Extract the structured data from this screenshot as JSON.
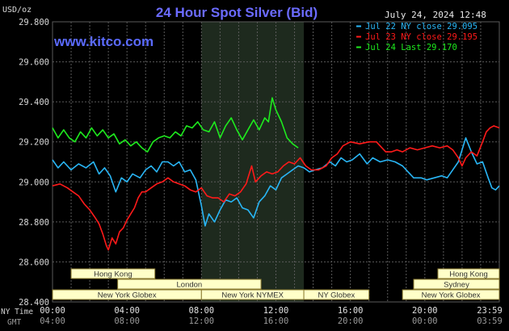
{
  "colors": {
    "background": "#000000",
    "plot_background": "#000000",
    "grid": "#5a5a5a",
    "nymex_band": "#1e2a1e",
    "title": "#6b6bff",
    "kitco": "#5b6bff",
    "axis_text": "#d8d8d8",
    "session_fill": "#ffffc8",
    "session_border": "#8a7a30",
    "session_text": "#333333"
  },
  "chart_data": {
    "type": "line",
    "title": "24 Hour Spot Silver (Bid)",
    "ylabel": "USD/oz",
    "timestamp": "July 24, 2024 12:48",
    "source": "www.kitco.com",
    "ylim": [
      28.4,
      29.8
    ],
    "yticks": [
      "29.800",
      "29.600",
      "29.400",
      "29.200",
      "29.000",
      "28.800",
      "28.600",
      "28.400"
    ],
    "x_hours": [
      0,
      24
    ],
    "xticks_ny": [
      "00:00",
      "04:00",
      "08:00",
      "12:00",
      "16:00",
      "20:00",
      "23:59"
    ],
    "xticks_gmt": [
      "04:00",
      "08:00",
      "12:00",
      "16:00",
      "20:00",
      "00:00",
      "03:59"
    ],
    "xlabel_ny": "NY Time",
    "xlabel_gmt": "GMT",
    "grid": true,
    "highlight_band_hours": [
      8.0,
      13.5
    ],
    "legend_position": "top-right",
    "series": [
      {
        "name": "Jul 22 NY close 29.095",
        "color": "#29b6f6",
        "points": [
          [
            0,
            29.11
          ],
          [
            0.3,
            29.07
          ],
          [
            0.6,
            29.1
          ],
          [
            1.0,
            29.06
          ],
          [
            1.4,
            29.09
          ],
          [
            1.8,
            29.07
          ],
          [
            2.2,
            29.1
          ],
          [
            2.5,
            29.04
          ],
          [
            2.8,
            29.07
          ],
          [
            3.1,
            29.03
          ],
          [
            3.4,
            28.95
          ],
          [
            3.7,
            29.02
          ],
          [
            4.0,
            29.0
          ],
          [
            4.3,
            29.04
          ],
          [
            4.7,
            29.02
          ],
          [
            5.0,
            29.06
          ],
          [
            5.3,
            29.08
          ],
          [
            5.6,
            29.05
          ],
          [
            5.9,
            29.1
          ],
          [
            6.2,
            29.1
          ],
          [
            6.5,
            29.08
          ],
          [
            6.8,
            29.1
          ],
          [
            7.1,
            29.05
          ],
          [
            7.4,
            29.06
          ],
          [
            7.7,
            29.01
          ],
          [
            8.0,
            28.88
          ],
          [
            8.2,
            28.78
          ],
          [
            8.4,
            28.84
          ],
          [
            8.7,
            28.8
          ],
          [
            9.0,
            28.86
          ],
          [
            9.3,
            28.91
          ],
          [
            9.6,
            28.9
          ],
          [
            9.9,
            28.92
          ],
          [
            10.2,
            28.87
          ],
          [
            10.5,
            28.86
          ],
          [
            10.8,
            28.82
          ],
          [
            11.1,
            28.9
          ],
          [
            11.4,
            28.93
          ],
          [
            11.7,
            28.98
          ],
          [
            12.0,
            28.96
          ],
          [
            12.3,
            29.02
          ],
          [
            12.6,
            29.04
          ],
          [
            12.9,
            29.06
          ],
          [
            13.2,
            29.08
          ],
          [
            13.5,
            29.07
          ],
          [
            13.8,
            29.05
          ],
          [
            14.1,
            29.06
          ],
          [
            14.5,
            29.07
          ],
          [
            14.9,
            29.1
          ],
          [
            15.2,
            29.08
          ],
          [
            15.5,
            29.12
          ],
          [
            15.8,
            29.1
          ],
          [
            16.1,
            29.11
          ],
          [
            16.5,
            29.14
          ],
          [
            16.9,
            29.09
          ],
          [
            17.2,
            29.12
          ],
          [
            17.6,
            29.1
          ],
          [
            18.0,
            29.11
          ],
          [
            18.4,
            29.1
          ],
          [
            18.8,
            29.08
          ],
          [
            19.1,
            29.05
          ],
          [
            19.4,
            29.02
          ],
          [
            19.8,
            29.02
          ],
          [
            20.1,
            29.01
          ],
          [
            20.5,
            29.02
          ],
          [
            20.9,
            29.03
          ],
          [
            21.2,
            29.02
          ],
          [
            21.5,
            29.06
          ],
          [
            21.8,
            29.1
          ],
          [
            22.0,
            29.16
          ],
          [
            22.2,
            29.22
          ],
          [
            22.5,
            29.15
          ],
          [
            22.8,
            29.09
          ],
          [
            23.1,
            29.1
          ],
          [
            23.4,
            29.02
          ],
          [
            23.6,
            28.97
          ],
          [
            23.8,
            28.96
          ],
          [
            24.0,
            28.98
          ]
        ]
      },
      {
        "name": "Jul 23 NY close 29.195",
        "color": "#ff1a1a",
        "points": [
          [
            0,
            28.98
          ],
          [
            0.4,
            28.99
          ],
          [
            0.8,
            28.97
          ],
          [
            1.1,
            28.95
          ],
          [
            1.4,
            28.93
          ],
          [
            1.7,
            28.89
          ],
          [
            2.0,
            28.86
          ],
          [
            2.3,
            28.82
          ],
          [
            2.5,
            28.79
          ],
          [
            2.7,
            28.74
          ],
          [
            2.9,
            28.68
          ],
          [
            3.0,
            28.66
          ],
          [
            3.2,
            28.72
          ],
          [
            3.4,
            28.69
          ],
          [
            3.6,
            28.75
          ],
          [
            3.8,
            28.77
          ],
          [
            4.0,
            28.81
          ],
          [
            4.2,
            28.84
          ],
          [
            4.4,
            28.87
          ],
          [
            4.6,
            28.92
          ],
          [
            4.8,
            28.95
          ],
          [
            5.0,
            28.95
          ],
          [
            5.3,
            28.97
          ],
          [
            5.6,
            28.99
          ],
          [
            5.9,
            29.0
          ],
          [
            6.2,
            29.02
          ],
          [
            6.5,
            29.0
          ],
          [
            6.8,
            28.99
          ],
          [
            7.1,
            28.98
          ],
          [
            7.4,
            28.96
          ],
          [
            7.7,
            28.95
          ],
          [
            8.0,
            28.97
          ],
          [
            8.3,
            28.93
          ],
          [
            8.6,
            28.92
          ],
          [
            8.9,
            28.92
          ],
          [
            9.2,
            28.9
          ],
          [
            9.5,
            28.94
          ],
          [
            9.8,
            28.93
          ],
          [
            10.1,
            28.95
          ],
          [
            10.4,
            28.99
          ],
          [
            10.7,
            29.08
          ],
          [
            10.9,
            29.0
          ],
          [
            11.2,
            29.03
          ],
          [
            11.5,
            29.05
          ],
          [
            11.8,
            29.04
          ],
          [
            12.1,
            29.05
          ],
          [
            12.4,
            29.08
          ],
          [
            12.7,
            29.1
          ],
          [
            13.0,
            29.09
          ],
          [
            13.3,
            29.12
          ],
          [
            13.6,
            29.08
          ],
          [
            13.9,
            29.06
          ],
          [
            14.3,
            29.06
          ],
          [
            14.7,
            29.08
          ],
          [
            15.0,
            29.12
          ],
          [
            15.3,
            29.14
          ],
          [
            15.6,
            29.18
          ],
          [
            16.0,
            29.2
          ],
          [
            16.5,
            29.19
          ],
          [
            17.0,
            29.2
          ],
          [
            17.4,
            29.2
          ],
          [
            17.6,
            29.18
          ],
          [
            17.9,
            29.15
          ],
          [
            18.2,
            29.15
          ],
          [
            18.5,
            29.16
          ],
          [
            18.8,
            29.15
          ],
          [
            19.2,
            29.17
          ],
          [
            19.6,
            29.16
          ],
          [
            20.0,
            29.17
          ],
          [
            20.4,
            29.18
          ],
          [
            20.8,
            29.17
          ],
          [
            21.2,
            29.18
          ],
          [
            21.5,
            29.16
          ],
          [
            21.8,
            29.12
          ],
          [
            22.0,
            29.08
          ],
          [
            22.2,
            29.12
          ],
          [
            22.5,
            29.15
          ],
          [
            22.8,
            29.13
          ],
          [
            23.1,
            29.2
          ],
          [
            23.3,
            29.25
          ],
          [
            23.5,
            29.27
          ],
          [
            23.7,
            29.28
          ],
          [
            24.0,
            29.27
          ]
        ]
      },
      {
        "name": "Jul 24 Last 29.170",
        "color": "#1eea1e",
        "points": [
          [
            0,
            29.27
          ],
          [
            0.3,
            29.22
          ],
          [
            0.6,
            29.26
          ],
          [
            0.9,
            29.22
          ],
          [
            1.2,
            29.2
          ],
          [
            1.5,
            29.25
          ],
          [
            1.8,
            29.22
          ],
          [
            2.1,
            29.27
          ],
          [
            2.4,
            29.23
          ],
          [
            2.7,
            29.26
          ],
          [
            3.0,
            29.22
          ],
          [
            3.3,
            29.24
          ],
          [
            3.6,
            29.19
          ],
          [
            3.9,
            29.21
          ],
          [
            4.2,
            29.18
          ],
          [
            4.5,
            29.2
          ],
          [
            4.8,
            29.17
          ],
          [
            5.1,
            29.15
          ],
          [
            5.4,
            29.2
          ],
          [
            5.7,
            29.22
          ],
          [
            6.0,
            29.23
          ],
          [
            6.3,
            29.22
          ],
          [
            6.6,
            29.25
          ],
          [
            6.9,
            29.23
          ],
          [
            7.2,
            29.28
          ],
          [
            7.5,
            29.27
          ],
          [
            7.8,
            29.3
          ],
          [
            8.1,
            29.26
          ],
          [
            8.4,
            29.25
          ],
          [
            8.7,
            29.3
          ],
          [
            9.0,
            29.22
          ],
          [
            9.3,
            29.28
          ],
          [
            9.6,
            29.32
          ],
          [
            9.9,
            29.26
          ],
          [
            10.2,
            29.21
          ],
          [
            10.5,
            29.26
          ],
          [
            10.8,
            29.31
          ],
          [
            11.1,
            29.26
          ],
          [
            11.4,
            29.32
          ],
          [
            11.6,
            29.3
          ],
          [
            11.8,
            29.42
          ],
          [
            12.0,
            29.36
          ],
          [
            12.3,
            29.3
          ],
          [
            12.6,
            29.22
          ],
          [
            12.9,
            29.19
          ],
          [
            13.2,
            29.17
          ]
        ]
      }
    ],
    "sessions": [
      {
        "label": "Hong Kong",
        "row": 0,
        "start": 1.0,
        "end": 5.5
      },
      {
        "label": "Hong Kong",
        "row": 0,
        "start": 20.7,
        "end": 24.0
      },
      {
        "label": "London",
        "row": 1,
        "start": 3.5,
        "end": 11.2
      },
      {
        "label": "Sydney",
        "row": 1,
        "start": 19.4,
        "end": 24.0
      },
      {
        "label": "New York Globex",
        "row": 2,
        "start": 0.0,
        "end": 8.0
      },
      {
        "label": "New York NYMEX",
        "row": 2,
        "start": 8.0,
        "end": 13.5
      },
      {
        "label": "NY Globex",
        "row": 2,
        "start": 13.5,
        "end": 17.0
      },
      {
        "label": "New York Globex",
        "row": 2,
        "start": 18.8,
        "end": 24.0
      }
    ]
  }
}
